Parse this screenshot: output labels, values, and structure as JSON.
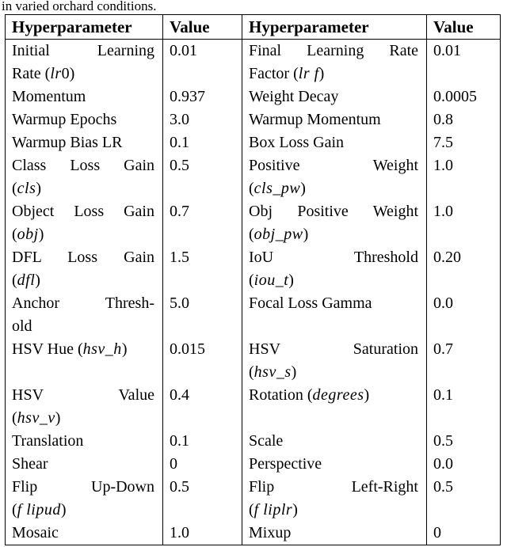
{
  "caption": "in varied orchard conditions.",
  "table": {
    "headers": [
      "Hyperparameter",
      "Value",
      "Hyperparameter",
      "Value"
    ],
    "rows": [
      {
        "left": {
          "lines": [
            {
              "spread": true,
              "segs": [
                {
                  "t": "Initial Learning"
                }
              ]
            },
            {
              "segs": [
                {
                  "t": "Rate ("
                },
                {
                  "t": "lr",
                  "i": true
                },
                {
                  "t": "0)"
                }
              ]
            }
          ],
          "value": "0.01"
        },
        "right": {
          "lines": [
            {
              "spread": true,
              "segs": [
                {
                  "t": "Final Learning Rate"
                }
              ]
            },
            {
              "segs": [
                {
                  "t": "Factor ("
                },
                {
                  "t": "lr f",
                  "i": true
                },
                {
                  "t": ")"
                }
              ]
            }
          ],
          "value": "0.01"
        }
      },
      {
        "left": {
          "lines": [
            {
              "segs": [
                {
                  "t": "Momentum"
                }
              ]
            }
          ],
          "value": "0.937"
        },
        "right": {
          "lines": [
            {
              "segs": [
                {
                  "t": "Weight Decay"
                }
              ]
            }
          ],
          "value": "0.0005"
        }
      },
      {
        "left": {
          "lines": [
            {
              "segs": [
                {
                  "t": "Warmup Epochs"
                }
              ]
            }
          ],
          "value": "3.0"
        },
        "right": {
          "lines": [
            {
              "segs": [
                {
                  "t": "Warmup Momentum"
                }
              ]
            }
          ],
          "value": "0.8"
        }
      },
      {
        "left": {
          "lines": [
            {
              "segs": [
                {
                  "t": "Warmup Bias LR"
                }
              ]
            }
          ],
          "value": "0.1"
        },
        "right": {
          "lines": [
            {
              "segs": [
                {
                  "t": "Box Loss Gain"
                }
              ]
            }
          ],
          "value": "7.5"
        }
      },
      {
        "left": {
          "lines": [
            {
              "spread": true,
              "segs": [
                {
                  "t": "Class Loss Gain"
                }
              ]
            },
            {
              "segs": [
                {
                  "t": "("
                },
                {
                  "t": "cls",
                  "i": true
                },
                {
                  "t": ")"
                }
              ]
            }
          ],
          "value": "0.5"
        },
        "right": {
          "lines": [
            {
              "spread": true,
              "segs": [
                {
                  "t": "Positive Weight"
                }
              ]
            },
            {
              "segs": [
                {
                  "t": "("
                },
                {
                  "t": "cls_pw",
                  "i": true
                },
                {
                  "t": ")"
                }
              ]
            }
          ],
          "value": "1.0"
        }
      },
      {
        "left": {
          "lines": [
            {
              "spread": true,
              "segs": [
                {
                  "t": "Object Loss Gain"
                }
              ]
            },
            {
              "segs": [
                {
                  "t": "("
                },
                {
                  "t": "obj",
                  "i": true
                },
                {
                  "t": ")"
                }
              ]
            }
          ],
          "value": "0.7"
        },
        "right": {
          "lines": [
            {
              "spread": true,
              "segs": [
                {
                  "t": "Obj Positive Weight"
                }
              ]
            },
            {
              "segs": [
                {
                  "t": "("
                },
                {
                  "t": "obj_pw",
                  "i": true
                },
                {
                  "t": ")"
                }
              ]
            }
          ],
          "value": "1.0"
        }
      },
      {
        "left": {
          "lines": [
            {
              "spread": true,
              "segs": [
                {
                  "t": "DFL Loss Gain"
                }
              ]
            },
            {
              "segs": [
                {
                  "t": "("
                },
                {
                  "t": "dfl",
                  "i": true
                },
                {
                  "t": ")"
                }
              ]
            }
          ],
          "value": "1.5"
        },
        "right": {
          "lines": [
            {
              "spread": true,
              "segs": [
                {
                  "t": "IoU Threshold"
                }
              ]
            },
            {
              "segs": [
                {
                  "t": "("
                },
                {
                  "t": "iou_t",
                  "i": true
                },
                {
                  "t": ")"
                }
              ]
            }
          ],
          "value": "0.20"
        }
      },
      {
        "left": {
          "lines": [
            {
              "spread": true,
              "segs": [
                {
                  "t": "Anchor Thresh-"
                }
              ]
            },
            {
              "segs": [
                {
                  "t": "old"
                }
              ]
            }
          ],
          "value": "5.0"
        },
        "right": {
          "lines": [
            {
              "segs": [
                {
                  "t": "Focal Loss Gamma"
                }
              ]
            }
          ],
          "value": "0.0"
        }
      },
      {
        "left": {
          "lines": [
            {
              "segs": [
                {
                  "t": "HSV Hue ("
                },
                {
                  "t": "hsv_h",
                  "i": true
                },
                {
                  "t": ")"
                }
              ]
            }
          ],
          "value": "0.015"
        },
        "right": {
          "lines": [
            {
              "spread": true,
              "segs": [
                {
                  "t": "HSV Saturation"
                }
              ]
            },
            {
              "segs": [
                {
                  "t": "("
                },
                {
                  "t": "hsv_s",
                  "i": true
                },
                {
                  "t": ")"
                }
              ]
            }
          ],
          "value": "0.7"
        }
      },
      {
        "left": {
          "lines": [
            {
              "spread": true,
              "segs": [
                {
                  "t": "HSV Value"
                }
              ]
            },
            {
              "segs": [
                {
                  "t": "("
                },
                {
                  "t": "hsv_v",
                  "i": true
                },
                {
                  "t": ")"
                }
              ]
            }
          ],
          "value": "0.4"
        },
        "right": {
          "lines": [
            {
              "segs": [
                {
                  "t": "Rotation ("
                },
                {
                  "t": "degrees",
                  "i": true
                },
                {
                  "t": ")"
                }
              ]
            }
          ],
          "value": "0.1"
        }
      },
      {
        "left": {
          "lines": [
            {
              "segs": [
                {
                  "t": "Translation"
                }
              ]
            }
          ],
          "value": "0.1"
        },
        "right": {
          "lines": [
            {
              "segs": [
                {
                  "t": "Scale"
                }
              ]
            }
          ],
          "value": "0.5"
        }
      },
      {
        "left": {
          "lines": [
            {
              "segs": [
                {
                  "t": "Shear"
                }
              ]
            }
          ],
          "value": "0"
        },
        "right": {
          "lines": [
            {
              "segs": [
                {
                  "t": "Perspective"
                }
              ]
            }
          ],
          "value": "0.0"
        }
      },
      {
        "left": {
          "lines": [
            {
              "spread": true,
              "segs": [
                {
                  "t": "Flip Up-Down"
                }
              ]
            },
            {
              "segs": [
                {
                  "t": "("
                },
                {
                  "t": "f lipud",
                  "i": true
                },
                {
                  "t": ")"
                }
              ]
            }
          ],
          "value": "0.5"
        },
        "right": {
          "lines": [
            {
              "spread": true,
              "segs": [
                {
                  "t": "Flip Left-Right"
                }
              ]
            },
            {
              "segs": [
                {
                  "t": "("
                },
                {
                  "t": "f liplr",
                  "i": true
                },
                {
                  "t": ")"
                }
              ]
            }
          ],
          "value": "0.5"
        }
      },
      {
        "left": {
          "lines": [
            {
              "segs": [
                {
                  "t": "Mosaic"
                }
              ]
            }
          ],
          "value": "1.0"
        },
        "right": {
          "lines": [
            {
              "segs": [
                {
                  "t": "Mixup"
                }
              ]
            }
          ],
          "value": "0"
        }
      }
    ]
  }
}
